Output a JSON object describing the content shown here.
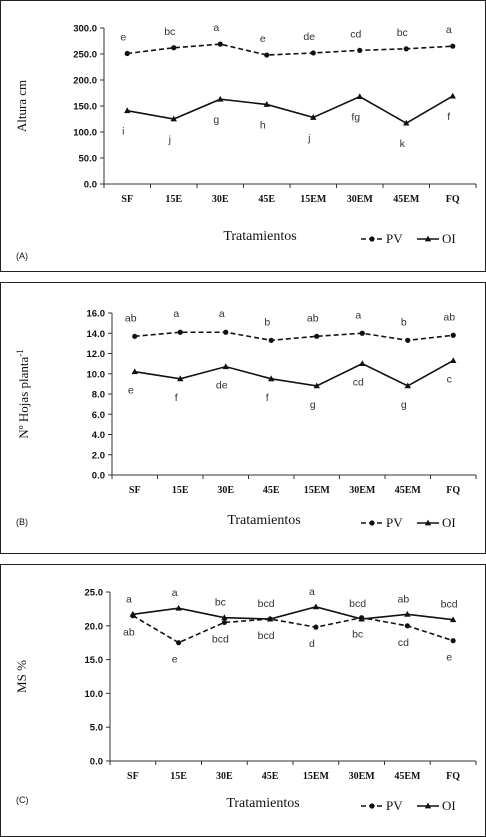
{
  "legend": {
    "pv": "PV",
    "oi": "OI"
  },
  "chart_data": [
    {
      "type": "line",
      "panel_label": "(A)",
      "ylabel": "Altura cm",
      "xlabel": "Tratamientos",
      "categories": [
        "SF",
        "15E",
        "30E",
        "45E",
        "15EM",
        "30EM",
        "45EM",
        "FQ"
      ],
      "ylim": [
        0,
        300
      ],
      "yticks": [
        "0.0",
        "50.0",
        "100.0",
        "150.0",
        "200.0",
        "250.0",
        "300.0"
      ],
      "series": [
        {
          "name": "PV",
          "style": "dashed",
          "marker": "circle",
          "values": [
            251,
            262,
            269,
            248,
            252,
            257,
            260,
            265
          ],
          "letters": [
            "e",
            "bc",
            "a",
            "e",
            "de",
            "cd",
            "bc",
            "a"
          ],
          "letter_pos": "above"
        },
        {
          "name": "OI",
          "style": "solid",
          "marker": "triangle",
          "values": [
            141,
            125,
            163,
            153,
            128,
            168,
            117,
            169
          ],
          "letters": [
            "i",
            "j",
            "g",
            "h",
            "j",
            "fg",
            "k",
            "f"
          ],
          "letter_pos": "below"
        }
      ],
      "legend_position": "bottom-right"
    },
    {
      "type": "line",
      "panel_label": "(B)",
      "ylabel": "Nº Hojas planta",
      "ylabel_sup": "-1",
      "xlabel": "Tratamientos",
      "categories": [
        "SF",
        "15E",
        "30E",
        "45E",
        "15EM",
        "30EM",
        "45EM",
        "FQ"
      ],
      "ylim": [
        0,
        16
      ],
      "yticks": [
        "0.0",
        "2.0",
        "4.0",
        "6.0",
        "8.0",
        "10.0",
        "12.0",
        "14.0",
        "16.0"
      ],
      "series": [
        {
          "name": "PV",
          "style": "dashed",
          "marker": "circle",
          "values": [
            13.7,
            14.1,
            14.1,
            13.3,
            13.7,
            14.0,
            13.3,
            13.8
          ],
          "letters": [
            "ab",
            "a",
            "a",
            "b",
            "ab",
            "a",
            "b",
            "ab"
          ],
          "letter_pos": "above"
        },
        {
          "name": "OI",
          "style": "solid",
          "marker": "triangle",
          "values": [
            10.2,
            9.5,
            10.7,
            9.5,
            8.8,
            11.0,
            8.8,
            11.3
          ],
          "letters": [
            "e",
            "f",
            "de",
            "f",
            "g",
            "cd",
            "g",
            "c"
          ],
          "letter_pos": "below"
        }
      ],
      "legend_position": "bottom-right"
    },
    {
      "type": "line",
      "panel_label": "(C)",
      "ylabel": "MS %",
      "xlabel": "Tratamientos",
      "categories": [
        "SF",
        "15E",
        "30E",
        "45E",
        "15EM",
        "30EM",
        "45EM",
        "FQ"
      ],
      "ylim": [
        0,
        25
      ],
      "yticks": [
        "0.0",
        "5.0",
        "10.0",
        "15.0",
        "20.0",
        "25.0"
      ],
      "series": [
        {
          "name": "PV",
          "style": "dashed",
          "marker": "circle",
          "values": [
            21.5,
            17.5,
            20.5,
            21.0,
            19.8,
            21.2,
            20.0,
            17.8
          ],
          "letters": [
            "ab",
            "e",
            "bcd",
            "bcd",
            "d",
            "bc",
            "cd",
            "e"
          ],
          "letter_pos": "below"
        },
        {
          "name": "OI",
          "style": "solid",
          "marker": "triangle",
          "values": [
            21.7,
            22.6,
            21.2,
            21.0,
            22.8,
            21.0,
            21.7,
            20.9
          ],
          "letters": [
            "a",
            "a",
            "bc",
            "bcd",
            "a",
            "bcd",
            "ab",
            "bcd"
          ],
          "letter_pos": "above"
        }
      ],
      "legend_position": "bottom-right"
    }
  ]
}
